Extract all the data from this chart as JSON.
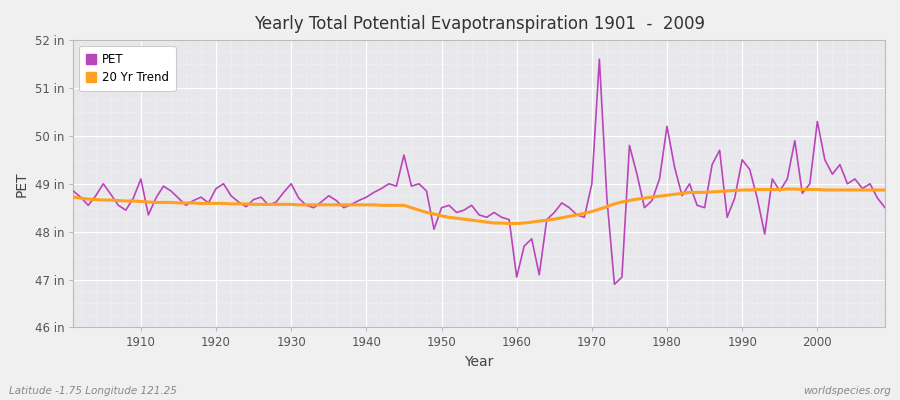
{
  "title": "Yearly Total Potential Evapotranspiration 1901  -  2009",
  "xlabel": "Year",
  "ylabel": "PET",
  "footnote_left": "Latitude -1.75 Longitude 121.25",
  "footnote_right": "worldspecies.org",
  "ylim": [
    46,
    52
  ],
  "yticks": [
    46,
    47,
    48,
    49,
    50,
    51,
    52
  ],
  "ytick_labels": [
    "46 in",
    "47 in",
    "48 in",
    "49 in",
    "50 in",
    "51 in",
    "52 in"
  ],
  "xlim": [
    1901,
    2009
  ],
  "xticks": [
    1910,
    1920,
    1930,
    1940,
    1950,
    1960,
    1970,
    1980,
    1990,
    2000
  ],
  "pet_color": "#BB44BB",
  "trend_color": "#FFA020",
  "plot_bg_color": "#E8E8EC",
  "fig_bg_color": "#F0F0F0",
  "grid_color": "#FFFFFF",
  "legend_entries": [
    "PET",
    "20 Yr Trend"
  ],
  "years": [
    1901,
    1902,
    1903,
    1904,
    1905,
    1906,
    1907,
    1908,
    1909,
    1910,
    1911,
    1912,
    1913,
    1914,
    1915,
    1916,
    1917,
    1918,
    1919,
    1920,
    1921,
    1922,
    1923,
    1924,
    1925,
    1926,
    1927,
    1928,
    1929,
    1930,
    1931,
    1932,
    1933,
    1934,
    1935,
    1936,
    1937,
    1938,
    1939,
    1940,
    1941,
    1942,
    1943,
    1944,
    1945,
    1946,
    1947,
    1948,
    1949,
    1950,
    1951,
    1952,
    1953,
    1954,
    1955,
    1956,
    1957,
    1958,
    1959,
    1960,
    1961,
    1962,
    1963,
    1964,
    1965,
    1966,
    1967,
    1968,
    1969,
    1970,
    1971,
    1972,
    1973,
    1974,
    1975,
    1976,
    1977,
    1978,
    1979,
    1980,
    1981,
    1982,
    1983,
    1984,
    1985,
    1986,
    1987,
    1988,
    1989,
    1990,
    1991,
    1992,
    1993,
    1994,
    1995,
    1996,
    1997,
    1998,
    1999,
    2000,
    2001,
    2002,
    2003,
    2004,
    2005,
    2006,
    2007,
    2008,
    2009
  ],
  "pet_values": [
    48.85,
    48.72,
    48.55,
    48.75,
    49.0,
    48.78,
    48.55,
    48.45,
    48.7,
    49.1,
    48.35,
    48.7,
    48.95,
    48.85,
    48.7,
    48.55,
    48.65,
    48.72,
    48.6,
    48.9,
    49.0,
    48.75,
    48.62,
    48.52,
    48.67,
    48.72,
    48.55,
    48.62,
    48.82,
    49.0,
    48.7,
    48.55,
    48.5,
    48.62,
    48.75,
    48.65,
    48.5,
    48.57,
    48.65,
    48.72,
    48.82,
    48.9,
    49.0,
    48.95,
    49.6,
    48.95,
    49.0,
    48.85,
    48.05,
    48.5,
    48.55,
    48.4,
    48.45,
    48.55,
    48.35,
    48.3,
    48.4,
    48.3,
    48.25,
    47.05,
    47.7,
    47.85,
    47.1,
    48.25,
    48.4,
    48.6,
    48.5,
    48.35,
    48.3,
    49.0,
    51.6,
    48.7,
    46.9,
    47.05,
    49.8,
    49.2,
    48.5,
    48.65,
    49.1,
    50.2,
    49.35,
    48.75,
    49.0,
    48.55,
    48.5,
    49.4,
    49.7,
    48.3,
    48.7,
    49.5,
    49.3,
    48.7,
    47.95,
    49.1,
    48.85,
    49.1,
    49.9,
    48.8,
    49.0,
    50.3,
    49.5,
    49.2,
    49.4,
    49.0,
    49.1,
    48.9,
    49.0,
    48.7,
    48.5
  ],
  "trend_values": [
    48.72,
    48.7,
    48.68,
    48.67,
    48.66,
    48.66,
    48.65,
    48.64,
    48.64,
    48.63,
    48.62,
    48.61,
    48.61,
    48.61,
    48.6,
    48.6,
    48.6,
    48.59,
    48.59,
    48.59,
    48.59,
    48.58,
    48.58,
    48.58,
    48.57,
    48.57,
    48.57,
    48.57,
    48.57,
    48.57,
    48.56,
    48.56,
    48.56,
    48.56,
    48.56,
    48.56,
    48.56,
    48.56,
    48.56,
    48.56,
    48.56,
    48.55,
    48.55,
    48.55,
    48.55,
    48.5,
    48.45,
    48.4,
    48.37,
    48.33,
    48.3,
    48.28,
    48.26,
    48.24,
    48.22,
    48.2,
    48.18,
    48.18,
    48.17,
    48.17,
    48.18,
    48.2,
    48.22,
    48.24,
    48.26,
    48.29,
    48.32,
    48.35,
    48.38,
    48.42,
    48.47,
    48.52,
    48.58,
    48.62,
    48.65,
    48.68,
    48.7,
    48.72,
    48.74,
    48.76,
    48.78,
    48.8,
    48.82,
    48.82,
    48.82,
    48.83,
    48.84,
    48.85,
    48.86,
    48.87,
    48.87,
    48.88,
    48.88,
    48.88,
    48.88,
    48.89,
    48.89,
    48.88,
    48.88,
    48.88,
    48.87,
    48.87,
    48.87,
    48.87,
    48.87,
    48.87,
    48.87,
    48.87,
    48.87
  ]
}
